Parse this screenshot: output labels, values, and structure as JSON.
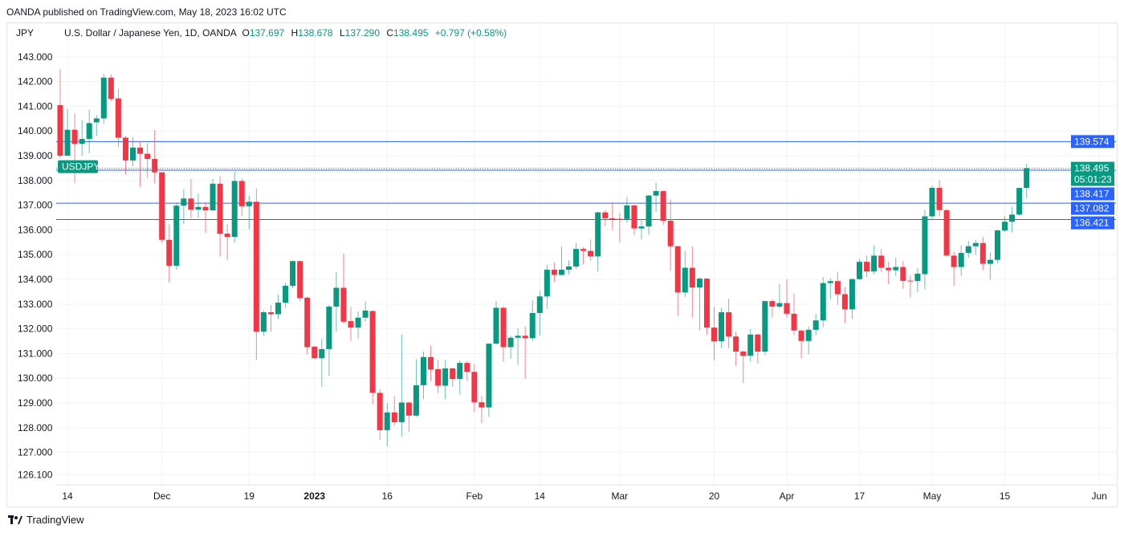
{
  "published": "OANDA published on TradingView.com, May 18, 2023 16:02 UTC",
  "legend": {
    "currency": "JPY",
    "symbol_desc": "U.S. Dollar / Japanese Yen, 1D, OANDA",
    "o_label": "O",
    "o": "137.697",
    "h_label": "H",
    "h": "138.678",
    "l_label": "L",
    "l": "137.290",
    "c_label": "C",
    "c": "138.495",
    "change": "+0.797 (+0.58%)"
  },
  "price_tags": {
    "last_price": "138.495",
    "countdown": "05:01:23",
    "symbol_tag": "USDJPY",
    "levels": [
      "139.574",
      "138.417",
      "137.082",
      "136.421"
    ]
  },
  "footer": {
    "brand": "TradingView"
  },
  "colors": {
    "up": "#089981",
    "down": "#f23645",
    "level": "#2962ff",
    "grid": "#f0f3fa"
  },
  "chart_data": {
    "type": "candlestick",
    "title": "U.S. Dollar / Japanese Yen, 1D, OANDA",
    "ylim": [
      125.69,
      144.39
    ],
    "xlim_bars": [
      0,
      146
    ],
    "grid": true,
    "y_ticks": [
      "126.100",
      "127.000",
      "128.000",
      "129.000",
      "130.000",
      "131.000",
      "132.000",
      "133.000",
      "134.000",
      "135.000",
      "136.000",
      "137.000",
      "138.000",
      "139.000",
      "140.000",
      "141.000",
      "142.000",
      "143.000"
    ],
    "x_ticks": [
      {
        "bar": 1,
        "label": "14",
        "bold": false
      },
      {
        "bar": 14,
        "label": "Dec",
        "bold": false
      },
      {
        "bar": 26,
        "label": "19",
        "bold": false
      },
      {
        "bar": 35,
        "label": "2023",
        "bold": true
      },
      {
        "bar": 45,
        "label": "16",
        "bold": false
      },
      {
        "bar": 57,
        "label": "Feb",
        "bold": false
      },
      {
        "bar": 66,
        "label": "14",
        "bold": false
      },
      {
        "bar": 77,
        "label": "Mar",
        "bold": false
      },
      {
        "bar": 90,
        "label": "20",
        "bold": false
      },
      {
        "bar": 100,
        "label": "Apr",
        "bold": false
      },
      {
        "bar": 110,
        "label": "17",
        "bold": false
      },
      {
        "bar": 120,
        "label": "May",
        "bold": false
      },
      {
        "bar": 130,
        "label": "15",
        "bold": false
      },
      {
        "bar": 143,
        "label": "Jun",
        "bold": false
      }
    ],
    "horizontal_levels": [
      139.574,
      138.417,
      137.082,
      136.421
    ],
    "last_price": 138.495,
    "ohlc": [
      [
        141.05,
        142.5,
        138.9,
        139.0
      ],
      [
        139.0,
        140.9,
        139.0,
        140.05
      ],
      [
        140.05,
        140.7,
        137.9,
        139.48
      ],
      [
        139.48,
        140.45,
        139.0,
        139.68
      ],
      [
        139.68,
        140.86,
        139.1,
        140.32
      ],
      [
        140.35,
        140.65,
        139.8,
        140.51
      ],
      [
        140.51,
        142.32,
        140.3,
        142.16
      ],
      [
        142.16,
        142.29,
        141.21,
        141.3
      ],
      [
        141.32,
        141.7,
        139.35,
        139.73
      ],
      [
        139.73,
        139.8,
        138.25,
        138.81
      ],
      [
        138.81,
        139.75,
        138.58,
        139.33
      ],
      [
        139.33,
        139.59,
        137.74,
        139.08
      ],
      [
        139.08,
        139.5,
        138.1,
        138.87
      ],
      [
        138.87,
        140.04,
        137.88,
        138.33
      ],
      [
        138.33,
        138.33,
        135.47,
        135.6
      ],
      [
        135.6,
        136.23,
        133.87,
        134.55
      ],
      [
        134.55,
        137.1,
        134.4,
        136.98
      ],
      [
        136.98,
        137.65,
        136.23,
        137.27
      ],
      [
        137.27,
        138.06,
        136.46,
        136.82
      ],
      [
        136.82,
        137.47,
        136.5,
        136.93
      ],
      [
        136.93,
        137.14,
        135.88,
        136.79
      ],
      [
        136.79,
        138.06,
        136.77,
        137.87
      ],
      [
        137.87,
        138.17,
        134.93,
        135.85
      ],
      [
        135.85,
        136.23,
        134.77,
        135.72
      ],
      [
        135.72,
        138.36,
        135.49,
        137.98
      ],
      [
        137.98,
        138.09,
        136.55,
        136.96
      ],
      [
        136.96,
        137.38,
        136.03,
        137.14
      ],
      [
        137.14,
        137.68,
        130.74,
        131.89
      ],
      [
        131.89,
        132.75,
        131.73,
        132.67
      ],
      [
        132.67,
        132.96,
        131.88,
        132.59
      ],
      [
        132.59,
        133.39,
        132.4,
        133.06
      ],
      [
        133.06,
        133.85,
        132.85,
        133.74
      ],
      [
        133.74,
        134.76,
        133.64,
        134.74
      ],
      [
        134.74,
        134.76,
        133.12,
        133.24
      ],
      [
        133.26,
        133.3,
        130.97,
        131.26
      ],
      [
        131.28,
        131.3,
        130.79,
        130.81
      ],
      [
        130.81,
        131.61,
        129.65,
        131.18
      ],
      [
        131.18,
        132.96,
        130.1,
        132.9
      ],
      [
        132.9,
        134.3,
        131.88,
        133.66
      ],
      [
        133.66,
        135.04,
        132.2,
        132.29
      ],
      [
        132.31,
        132.88,
        131.51,
        132.05
      ],
      [
        132.05,
        132.7,
        131.59,
        132.45
      ],
      [
        132.45,
        133.12,
        132.29,
        132.74
      ],
      [
        132.72,
        132.74,
        128.96,
        129.41
      ],
      [
        129.41,
        129.56,
        127.51,
        127.9
      ],
      [
        127.9,
        129.0,
        127.25,
        128.62
      ],
      [
        128.62,
        129.27,
        128.08,
        128.22
      ],
      [
        128.22,
        131.78,
        127.63,
        129.02
      ],
      [
        129.02,
        129.05,
        127.83,
        128.49
      ],
      [
        128.49,
        130.78,
        128.45,
        129.72
      ],
      [
        129.72,
        131.08,
        129.16,
        130.86
      ],
      [
        130.86,
        131.32,
        129.89,
        130.35
      ],
      [
        130.37,
        130.75,
        129.4,
        129.7
      ],
      [
        129.7,
        130.75,
        129.16,
        130.4
      ],
      [
        130.4,
        130.43,
        129.65,
        129.97
      ],
      [
        129.97,
        130.72,
        129.35,
        130.62
      ],
      [
        130.62,
        130.7,
        129.89,
        130.26
      ],
      [
        130.26,
        130.58,
        128.64,
        129.03
      ],
      [
        129.03,
        129.27,
        128.19,
        128.82
      ],
      [
        128.82,
        131.4,
        128.43,
        131.4
      ],
      [
        131.4,
        133.13,
        131.37,
        132.85
      ],
      [
        132.85,
        132.92,
        130.67,
        131.26
      ],
      [
        131.26,
        131.73,
        130.8,
        131.64
      ],
      [
        131.64,
        132.02,
        130.54,
        131.72
      ],
      [
        131.72,
        132.1,
        129.97,
        131.62
      ],
      [
        131.62,
        133.15,
        131.51,
        132.64
      ],
      [
        132.64,
        133.53,
        131.73,
        133.31
      ],
      [
        133.31,
        134.59,
        132.81,
        134.39
      ],
      [
        134.39,
        134.69,
        133.9,
        134.18
      ],
      [
        134.18,
        135.33,
        134.15,
        134.39
      ],
      [
        134.39,
        134.77,
        134.2,
        134.52
      ],
      [
        134.52,
        135.47,
        134.42,
        135.23
      ],
      [
        135.23,
        135.3,
        134.61,
        135.15
      ],
      [
        135.15,
        135.61,
        134.75,
        134.93
      ],
      [
        134.93,
        136.73,
        134.32,
        136.71
      ],
      [
        136.71,
        136.8,
        136.15,
        136.47
      ],
      [
        136.47,
        137.12,
        135.99,
        136.44
      ],
      [
        136.45,
        136.69,
        135.5,
        136.43
      ],
      [
        136.44,
        137.34,
        136.3,
        136.99
      ],
      [
        136.99,
        137.02,
        135.79,
        136.06
      ],
      [
        136.06,
        136.42,
        135.61,
        136.14
      ],
      [
        136.14,
        137.42,
        135.79,
        137.39
      ],
      [
        137.39,
        137.91,
        136.73,
        137.57
      ],
      [
        137.57,
        137.6,
        136.2,
        136.37
      ],
      [
        136.37,
        137.23,
        134.36,
        135.34
      ],
      [
        135.34,
        135.36,
        132.52,
        133.47
      ],
      [
        133.47,
        135.15,
        133.28,
        134.47
      ],
      [
        134.47,
        135.34,
        132.45,
        133.67
      ],
      [
        133.67,
        134.08,
        131.94,
        134.03
      ],
      [
        134.03,
        134.05,
        131.77,
        132.05
      ],
      [
        132.05,
        132.88,
        130.72,
        131.5
      ],
      [
        131.5,
        132.85,
        131.23,
        132.67
      ],
      [
        132.67,
        133.22,
        131.21,
        131.69
      ],
      [
        131.69,
        131.89,
        130.49,
        131.08
      ],
      [
        131.08,
        131.12,
        129.8,
        130.91
      ],
      [
        130.91,
        131.99,
        130.67,
        131.77
      ],
      [
        131.77,
        131.8,
        130.6,
        131.08
      ],
      [
        131.08,
        133.14,
        130.94,
        133.12
      ],
      [
        133.12,
        133.2,
        132.45,
        132.9
      ],
      [
        132.9,
        133.82,
        132.83,
        133.04
      ],
      [
        133.04,
        134.01,
        132.45,
        132.61
      ],
      [
        132.61,
        133.42,
        131.75,
        131.93
      ],
      [
        131.93,
        131.95,
        130.81,
        131.51
      ],
      [
        131.51,
        132.1,
        130.97,
        131.96
      ],
      [
        131.96,
        132.61,
        131.75,
        132.34
      ],
      [
        132.34,
        134.1,
        132.07,
        133.85
      ],
      [
        133.85,
        134.05,
        133.2,
        133.93
      ],
      [
        133.93,
        134.3,
        132.97,
        133.4
      ],
      [
        133.4,
        133.69,
        132.23,
        132.79
      ],
      [
        132.79,
        134.05,
        132.4,
        134.01
      ],
      [
        134.01,
        134.82,
        133.98,
        134.71
      ],
      [
        134.71,
        134.96,
        134.1,
        134.32
      ],
      [
        134.32,
        135.38,
        134.21,
        134.96
      ],
      [
        134.96,
        135.23,
        134.3,
        134.47
      ],
      [
        134.47,
        134.71,
        133.8,
        134.37
      ],
      [
        134.37,
        134.88,
        134.14,
        134.5
      ],
      [
        134.5,
        134.74,
        133.62,
        133.94
      ],
      [
        133.95,
        134.18,
        133.26,
        133.93
      ],
      [
        133.93,
        134.47,
        133.47,
        134.23
      ],
      [
        134.21,
        136.82,
        133.6,
        136.55
      ],
      [
        136.55,
        137.79,
        136.44,
        137.7
      ],
      [
        137.7,
        138.01,
        136.55,
        136.8
      ],
      [
        136.8,
        136.85,
        134.96,
        134.96
      ],
      [
        134.96,
        135.12,
        133.74,
        134.5
      ],
      [
        134.5,
        135.38,
        134.14,
        135.07
      ],
      [
        135.07,
        135.55,
        134.88,
        135.34
      ],
      [
        135.34,
        135.6,
        134.99,
        135.47
      ],
      [
        135.47,
        135.72,
        134.37,
        134.63
      ],
      [
        134.63,
        135.09,
        133.99,
        134.79
      ],
      [
        134.79,
        136.01,
        134.66,
        135.98
      ],
      [
        135.98,
        136.57,
        135.9,
        136.33
      ],
      [
        136.33,
        136.93,
        135.9,
        136.62
      ],
      [
        136.62,
        137.72,
        136.58,
        137.697
      ],
      [
        137.697,
        138.678,
        137.29,
        138.495
      ]
    ]
  }
}
